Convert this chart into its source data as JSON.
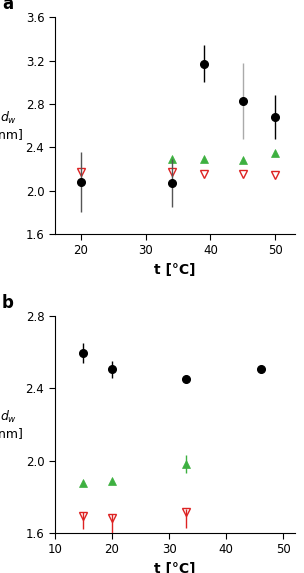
{
  "panel_a": {
    "label": "a",
    "xlabel": "t [°C]",
    "ylabel": "d_w\n[nm]",
    "ylim": [
      1.6,
      3.6
    ],
    "yticks": [
      1.6,
      2.0,
      2.4,
      2.8,
      3.2,
      3.6
    ],
    "xlim": [
      16,
      53
    ],
    "xticks": [
      20,
      30,
      40,
      50
    ],
    "black_x": [
      20,
      34,
      39,
      45,
      50
    ],
    "black_y": [
      2.08,
      2.07,
      3.17,
      2.83,
      2.68
    ],
    "black_yerr_lo": [
      0.28,
      0.22,
      0.17,
      0.35,
      0.2
    ],
    "black_yerr_hi": [
      0.28,
      0.22,
      0.17,
      0.35,
      0.2
    ],
    "black_ecolor": [
      "#555555",
      "#555555",
      "#000000",
      "#aaaaaa",
      "#000000"
    ],
    "green_x": [
      34,
      39,
      45,
      50
    ],
    "green_y": [
      2.29,
      2.29,
      2.28,
      2.35
    ],
    "red_x": [
      20,
      34,
      39,
      45,
      50
    ],
    "red_y": [
      2.17,
      2.17,
      2.15,
      2.15,
      2.14
    ]
  },
  "panel_b": {
    "label": "b",
    "xlabel": "t [°C]",
    "ylabel": "d_w\n[nm]",
    "ylim": [
      1.6,
      2.8
    ],
    "yticks": [
      1.6,
      2.0,
      2.4,
      2.8
    ],
    "xlim": [
      10,
      52
    ],
    "xticks": [
      10,
      20,
      30,
      40,
      50
    ],
    "black_x": [
      15,
      20,
      33,
      46
    ],
    "black_y": [
      2.595,
      2.505,
      2.455,
      2.505
    ],
    "black_yerr": [
      0.055,
      0.045,
      0.02,
      0.02
    ],
    "green_x": [
      15,
      20,
      33
    ],
    "green_y": [
      1.875,
      1.885,
      1.98
    ],
    "green_yerr_lo": [
      0.0,
      0.0,
      0.05
    ],
    "green_yerr_hi": [
      0.0,
      0.0,
      0.05
    ],
    "red_x": [
      15,
      20,
      33
    ],
    "red_y": [
      1.695,
      1.685,
      1.715
    ],
    "red_yerr_lo": [
      0.075,
      0.085,
      0.09
    ],
    "red_yerr_hi": [
      0.02,
      0.02,
      0.02
    ]
  },
  "black_color": "#000000",
  "green_color": "#3db040",
  "red_color": "#dd2222",
  "gray_ecolor": "#888888"
}
